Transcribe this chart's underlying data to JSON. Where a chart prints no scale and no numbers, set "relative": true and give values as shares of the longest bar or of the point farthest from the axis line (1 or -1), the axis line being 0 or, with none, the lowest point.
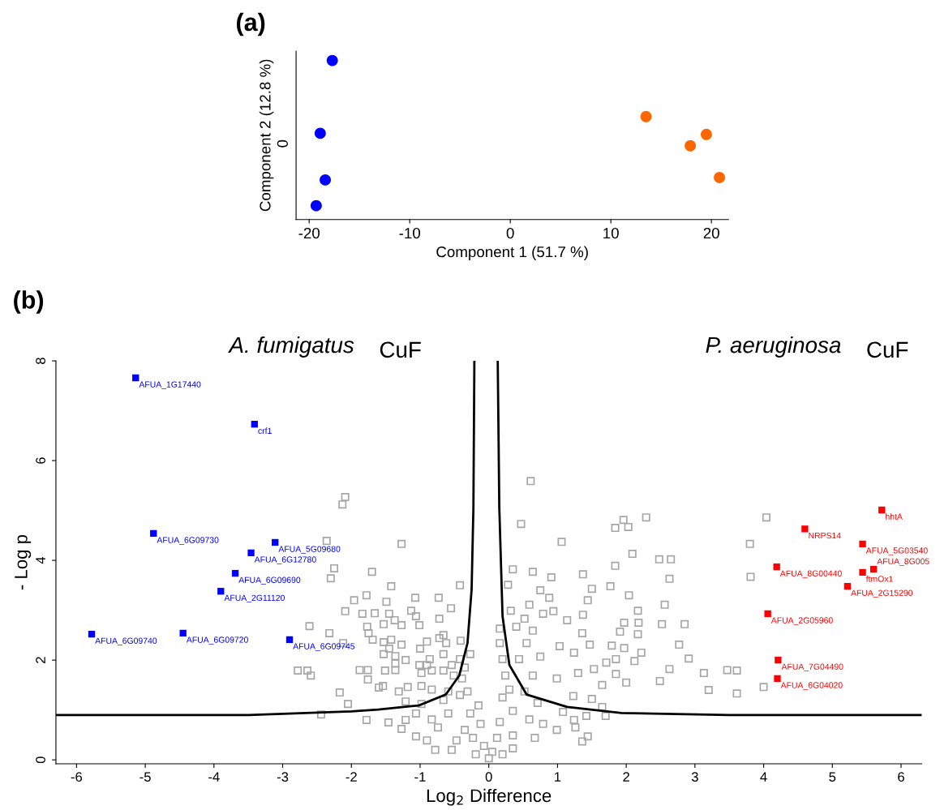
{
  "chart_data": [
    {
      "type": "scatter",
      "title": "(a)",
      "xlabel": "Component 1 (51.7 %)",
      "ylabel": "Component 2 (12.8 %)",
      "relative": true,
      "marker": "circle",
      "grid": false,
      "legend": false,
      "xlim": [
        -21.3,
        21.7
      ],
      "xticks": [
        -20,
        -10,
        0,
        10,
        20
      ],
      "annotations": [
        "0"
      ],
      "series": [
        {
          "color": "#0000ff",
          "x": [
            -17.7,
            -18.9,
            -18.4,
            -19.3
          ],
          "values": [
            1,
            0.542,
            0.249,
            0.087
          ]
        },
        {
          "color": "#ff6600",
          "x": [
            13.5,
            17.9,
            19.5,
            20.8
          ],
          "values": [
            0.647,
            0.464,
            0.535,
            0.264
          ]
        }
      ]
    },
    {
      "type": "scatter",
      "title": "(b)",
      "xlabel": "Log$_{2}$ Difference",
      "ylabel": "- Log p",
      "marker": "square",
      "grid": false,
      "legend": false,
      "xlim": [
        -6.3,
        6.3
      ],
      "xticks": [
        -6,
        -5,
        -4,
        -3,
        -2,
        -1,
        0,
        1,
        2,
        3,
        4,
        5,
        6
      ],
      "ylim": [
        -0.08,
        8
      ],
      "yticks": [
        0,
        2,
        4,
        6,
        8
      ],
      "annotations": [
        "A. fumigatus CuF",
        "P. aeruginosa CuF",
        {
          "text": "AFUA_1G17440",
          "x": -5.14,
          "y": 7.66
        },
        {
          "text": "crf1",
          "x": -3.41,
          "y": 6.73
        },
        {
          "text": "AFUA_6G09730",
          "x": -4.88,
          "y": 4.54
        },
        {
          "text": "AFUA_5G09680",
          "x": -3.11,
          "y": 4.36
        },
        {
          "text": "AFUA_6G12780",
          "x": -3.46,
          "y": 4.15
        },
        {
          "text": "AFUA_6G09690",
          "x": -3.69,
          "y": 3.74
        },
        {
          "text": "AFUA_2G11120",
          "x": -3.9,
          "y": 3.38
        },
        {
          "text": "AFUA_6G09740",
          "x": -5.78,
          "y": 2.52
        },
        {
          "text": "AFUA_6G09720",
          "x": -4.45,
          "y": 2.54
        },
        {
          "text": "AFUA_6G09745",
          "x": -2.9,
          "y": 2.41
        },
        {
          "text": "hhtA",
          "x": 5.72,
          "y": 5.01
        },
        {
          "text": "NRPS14",
          "x": 4.6,
          "y": 4.63
        },
        {
          "text": "AFUA_5G03540",
          "x": 5.44,
          "y": 4.33
        },
        {
          "text": "AFUA_8G00440",
          "x": 4.19,
          "y": 3.87
        },
        {
          "text": "ftmOx1",
          "x": 5.44,
          "y": 3.76
        },
        {
          "text": "AFUA_8G005",
          "x": 5.6,
          "y": 3.82
        },
        {
          "text": "AFUA_2G15290",
          "x": 5.22,
          "y": 3.48
        },
        {
          "text": "AFUA_2G05960",
          "x": 4.06,
          "y": 2.93
        },
        {
          "text": "AFUA_7G04490",
          "x": 4.21,
          "y": 2.0
        },
        {
          "text": "AFUA_6G04020",
          "x": 4.2,
          "y": 1.63
        }
      ],
      "series": [
        {
          "color": "#a6a6a6",
          "x": [
            4.04,
            3.8,
            3.81,
            4.0,
            3.47,
            3.61,
            3.61,
            3.2,
            2.09,
            2.29,
            2.03,
            2.63,
            2.48,
            2.65,
            2.17,
            2.17,
            2.04,
            1.97,
            2.56,
            2.52,
            2.22,
            2.85,
            2.77,
            2.91,
            2.49,
            3.13,
            2.63,
            0.61,
            0.47,
            1.06,
            1.96,
            1.84,
            1.84,
            0.64,
            0.35,
            0.91,
            1.37,
            1.77,
            1.5,
            1.44,
            1.37,
            2.18,
            0.75,
            0.88,
            0.59,
            0.79,
            0.28,
            0.94,
            1.14,
            1.36,
            1.91,
            1.79,
            1.97,
            1.47,
            1.24,
            1.03,
            1.85,
            2.12,
            1.71,
            1.53,
            1.3,
            1.85,
            0.99,
            1.65,
            2.0,
            1.23,
            1.5,
            1.65,
            1.08,
            1.42,
            1.7,
            1.24,
            0.99,
            1.36,
            1.44,
            1.26,
            0.79,
            0.67,
            0.35,
            0.59,
            0.35,
            0.71,
            0.52,
            0.64,
            0.44,
            0.75,
            0.55,
            0.4,
            0.52,
            0.32,
            0.64,
            0.2,
            0.12,
            0.16,
            0.2,
            0.24,
            0.2,
            0.16,
            0.16,
            0.3,
            0.35,
            0.05,
            0.0,
            -2.09,
            -2.13,
            -2.36,
            -1.27,
            -2.25,
            -2.3,
            -1.7,
            -1.42,
            -0.42,
            -1.78,
            -1.96,
            -1.49,
            -1.07,
            -0.73,
            -0.55,
            -2.09,
            -1.84,
            -1.66,
            -1.45,
            -1.13,
            -1.06,
            -1.27,
            -1.37,
            -1.53,
            -1.01,
            -0.72,
            -2.61,
            -2.32,
            -2.12,
            -1.77,
            -1.75,
            -1.69,
            -1.53,
            -1.42,
            -1.27,
            -1.45,
            -1.53,
            -1.36,
            -1.21,
            -1.36,
            -1.51,
            -1.36,
            -1.88,
            -1.76,
            -1.76,
            -1.6,
            -1.54,
            -2.17,
            -2.05,
            -2.78,
            -2.64,
            -2.59,
            -2.44,
            -1.78,
            -1.46,
            -1.21,
            -1.27,
            -1.06,
            -0.78,
            -0.54,
            -0.9,
            -0.74,
            -1.06,
            -0.83,
            -0.59,
            -0.66,
            -0.42,
            -0.98,
            -1.21,
            -1.31,
            -1.18,
            -0.98,
            -0.83,
            -0.59,
            -0.51,
            -0.39,
            -0.35,
            -0.42,
            -0.54,
            -0.66,
            -0.98,
            -0.9,
            -0.83,
            -1.01,
            -0.86,
            -0.62,
            -0.66,
            -0.72,
            -1.0,
            -0.9,
            -0.66,
            -0.41,
            -0.27,
            -0.31,
            -0.27,
            -0.23,
            -0.19,
            -0.12,
            -0.15,
            -0.07,
            -0.35,
            -0.47
          ],
          "values": [
            4.86,
            4.33,
            3.67,
            1.46,
            1.8,
            1.79,
            1.33,
            1.4,
            4.13,
            4.86,
            4.67,
            3.63,
            4.02,
            4.02,
            2.52,
            2.99,
            3.3,
            2.75,
            3.11,
            2.72,
            2.15,
            2.72,
            2.31,
            2.03,
            1.58,
            1.74,
            1.82,
            5.59,
            4.73,
            4.37,
            4.81,
            4.65,
            3.89,
            3.77,
            3.82,
            3.66,
            3.72,
            3.48,
            3.43,
            3.2,
            2.91,
            2.75,
            3.4,
            3.25,
            3.11,
            2.93,
            3.51,
            2.98,
            2.8,
            2.54,
            2.57,
            2.29,
            2.24,
            2.31,
            2.15,
            2.28,
            2.02,
            1.98,
            1.95,
            1.82,
            1.74,
            1.72,
            1.63,
            1.5,
            1.55,
            1.28,
            1.22,
            1.06,
            0.96,
            0.88,
            0.88,
            0.8,
            0.6,
            0.37,
            0.47,
            0.65,
            0.72,
            0.44,
            0.23,
            0.81,
            0.49,
            1.14,
            1.37,
            1.69,
            2.02,
            2.07,
            2.34,
            2.67,
            2.83,
            2.99,
            2.59,
            0.11,
            0.44,
            0.76,
            1.25,
            1.69,
            2.02,
            2.34,
            2.63,
            1.41,
            0.98,
            0.16,
            0.03,
            5.27,
            5.12,
            4.39,
            4.33,
            3.84,
            3.64,
            3.77,
            3.48,
            3.5,
            3.3,
            3.2,
            3.17,
            3.25,
            3.25,
            3.04,
            2.98,
            2.93,
            2.94,
            2.93,
            2.99,
            2.88,
            2.7,
            2.8,
            2.72,
            2.7,
            2.83,
            2.68,
            2.54,
            2.34,
            2.67,
            2.54,
            2.41,
            2.36,
            2.41,
            2.31,
            2.23,
            2.12,
            2.08,
            2.0,
            1.93,
            1.79,
            1.8,
            1.8,
            1.8,
            1.61,
            1.45,
            1.48,
            1.35,
            1.12,
            1.79,
            1.79,
            1.69,
            0.91,
            0.8,
            0.75,
            0.8,
            0.62,
            0.47,
            0.2,
            0.2,
            0.39,
            0.65,
            0.93,
            0.81,
            0.93,
            1.2,
            1.3,
            1.12,
            1.17,
            1.37,
            1.46,
            1.48,
            1.41,
            1.37,
            1.69,
            1.63,
            1.85,
            2.02,
            1.9,
            1.79,
            1.74,
            1.9,
            1.79,
            1.9,
            2.02,
            2.34,
            2.5,
            2.44,
            2.23,
            2.37,
            2.12,
            2.39,
            2.12,
            1.37,
            0.93,
            0.44,
            0.11,
            0.72,
            1.09,
            0.28,
            0.6,
            0.39
          ]
        },
        {
          "color": "#0000ff",
          "x": [
            -5.14,
            -3.41,
            -4.88,
            -3.11,
            -3.46,
            -3.69,
            -3.9,
            -5.78,
            -4.45,
            -2.9
          ],
          "values": [
            7.66,
            6.73,
            4.54,
            4.36,
            4.15,
            3.74,
            3.38,
            2.52,
            2.54,
            2.41
          ]
        },
        {
          "color": "#ff0000",
          "x": [
            5.72,
            4.6,
            5.44,
            4.19,
            5.44,
            5.6,
            5.22,
            4.06,
            4.21,
            4.2
          ],
          "values": [
            5.01,
            4.63,
            4.33,
            3.87,
            3.76,
            3.82,
            3.48,
            2.93,
            2.0,
            1.63
          ]
        },
        {
          "type": "line",
          "color": "#000000",
          "marker": "none",
          "x": [
            -6.3,
            -3.5,
            -2.0,
            -1.61,
            -1.02,
            -0.625,
            -0.43,
            -0.31,
            -0.25,
            -0.224,
            -0.21
          ],
          "values": [
            0.9,
            0.9,
            0.97,
            1.01,
            1.09,
            1.31,
            1.69,
            2.34,
            3.42,
            5.05,
            8
          ]
        },
        {
          "type": "line",
          "color": "#000000",
          "marker": "none",
          "x": [
            0.13,
            0.153,
            0.2,
            0.3,
            0.55,
            1.14,
            1.93,
            3.5,
            6.3
          ],
          "values": [
            8,
            5.05,
            2.88,
            1.9,
            1.31,
            1.06,
            0.94,
            0.9,
            0.9
          ]
        }
      ]
    }
  ]
}
